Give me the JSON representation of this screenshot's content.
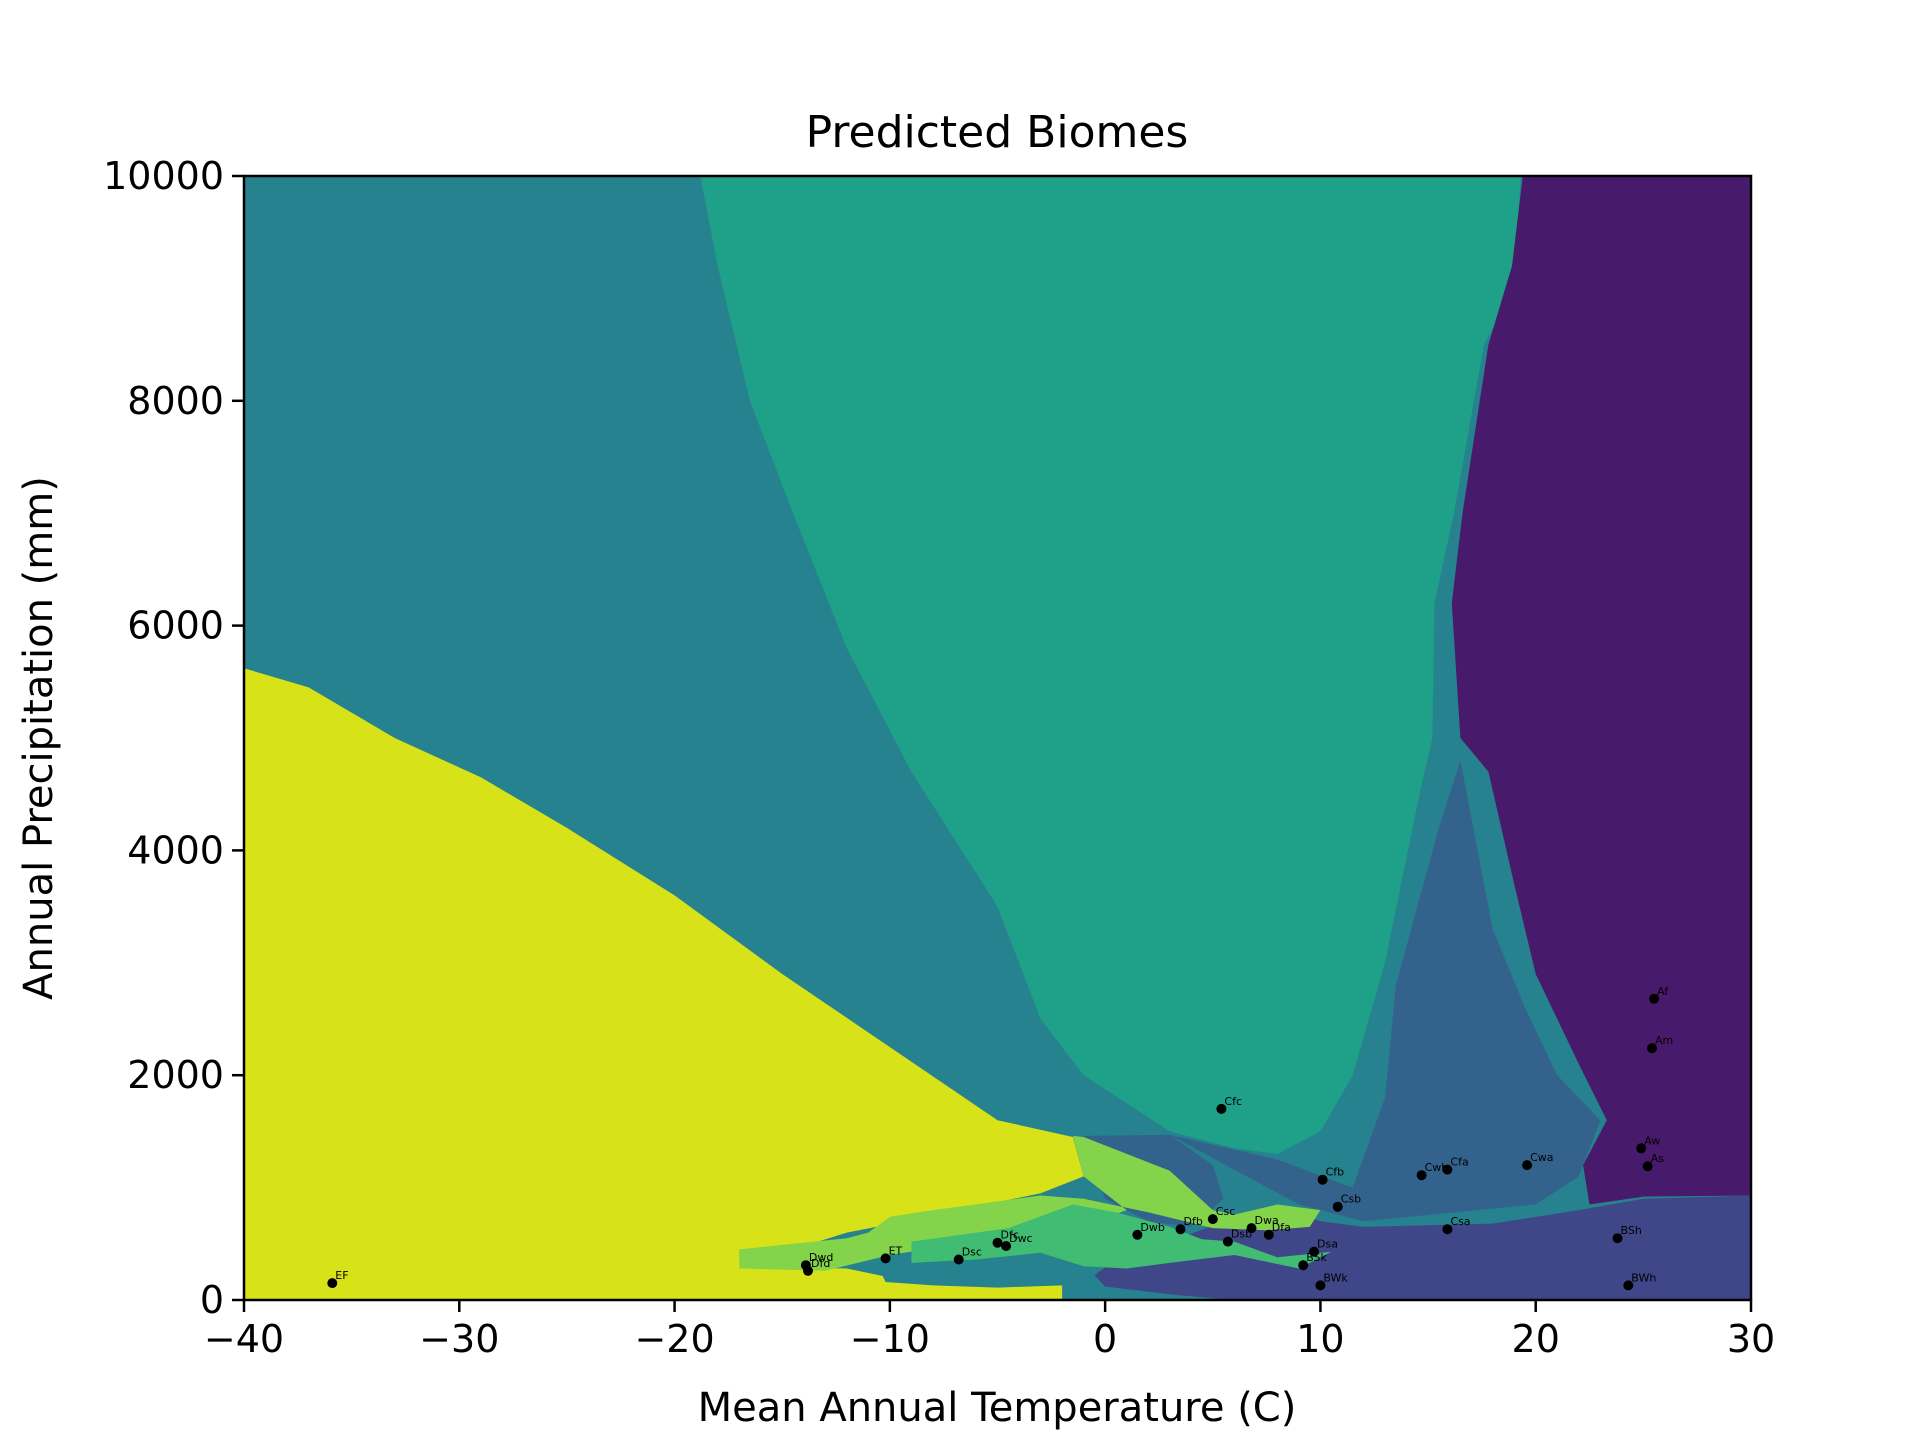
{
  "chart_data": {
    "type": "contourf-scatter",
    "title": "Predicted Biomes",
    "xlabel": "Mean Annual Temperature (C)",
    "ylabel": "Annual Precipitation (mm)",
    "xlim": [
      -40,
      30
    ],
    "ylim": [
      0,
      10000
    ],
    "xticks": [
      -40,
      -30,
      -20,
      -10,
      0,
      10,
      20,
      30
    ],
    "xtick_labels": [
      "−40",
      "−30",
      "−20",
      "−10",
      "0",
      "10",
      "20",
      "30"
    ],
    "yticks": [
      0,
      2000,
      4000,
      6000,
      8000,
      10000
    ],
    "ytick_labels": [
      "0",
      "2000",
      "4000",
      "6000",
      "8000",
      "10000"
    ],
    "grid": false,
    "region_colors": {
      "tropical": "#481a6c",
      "arid_hot": "#3f4788",
      "semi_arid": "#33638d",
      "temperate_humid": "#26828e",
      "montane": "#1fa088",
      "continental": "#40bd72",
      "subpolar": "#84d44b",
      "polar": "#d8e219"
    },
    "points": [
      {
        "label": "Af",
        "t": 25.5,
        "p": 2680
      },
      {
        "label": "Am",
        "t": 25.4,
        "p": 2240
      },
      {
        "label": "Aw",
        "t": 24.9,
        "p": 1350
      },
      {
        "label": "As",
        "t": 25.2,
        "p": 1190
      },
      {
        "label": "BSh",
        "t": 23.8,
        "p": 550
      },
      {
        "label": "BWh",
        "t": 24.3,
        "p": 130
      },
      {
        "label": "BSk",
        "t": 9.2,
        "p": 310
      },
      {
        "label": "BWk",
        "t": 10.0,
        "p": 130
      },
      {
        "label": "Cfc",
        "t": 5.4,
        "p": 1700
      },
      {
        "label": "Cfb",
        "t": 10.1,
        "p": 1070
      },
      {
        "label": "Cfa",
        "t": 15.9,
        "p": 1160
      },
      {
        "label": "Cwb",
        "t": 14.7,
        "p": 1110
      },
      {
        "label": "Cwa",
        "t": 19.6,
        "p": 1200
      },
      {
        "label": "Csb",
        "t": 10.8,
        "p": 830
      },
      {
        "label": "Csa",
        "t": 15.9,
        "p": 630
      },
      {
        "label": "Csc",
        "t": 5.0,
        "p": 720
      },
      {
        "label": "Dfb",
        "t": 3.5,
        "p": 630
      },
      {
        "label": "Dwb",
        "t": 1.5,
        "p": 580
      },
      {
        "label": "Dsb",
        "t": 5.7,
        "p": 520
      },
      {
        "label": "Dwa",
        "t": 6.8,
        "p": 640
      },
      {
        "label": "Dfa",
        "t": 7.6,
        "p": 580
      },
      {
        "label": "Dsa",
        "t": 9.7,
        "p": 430
      },
      {
        "label": "Dsc",
        "t": -6.8,
        "p": 360
      },
      {
        "label": "Dfc",
        "t": -5.0,
        "p": 510
      },
      {
        "label": "Dwc",
        "t": -4.6,
        "p": 480
      },
      {
        "label": "ET",
        "t": -10.2,
        "p": 370
      },
      {
        "label": "Dwd",
        "t": -13.9,
        "p": 310
      },
      {
        "label": "Dfd",
        "t": -13.8,
        "p": 260
      },
      {
        "label": "EF",
        "t": -35.9,
        "p": 150
      }
    ]
  }
}
